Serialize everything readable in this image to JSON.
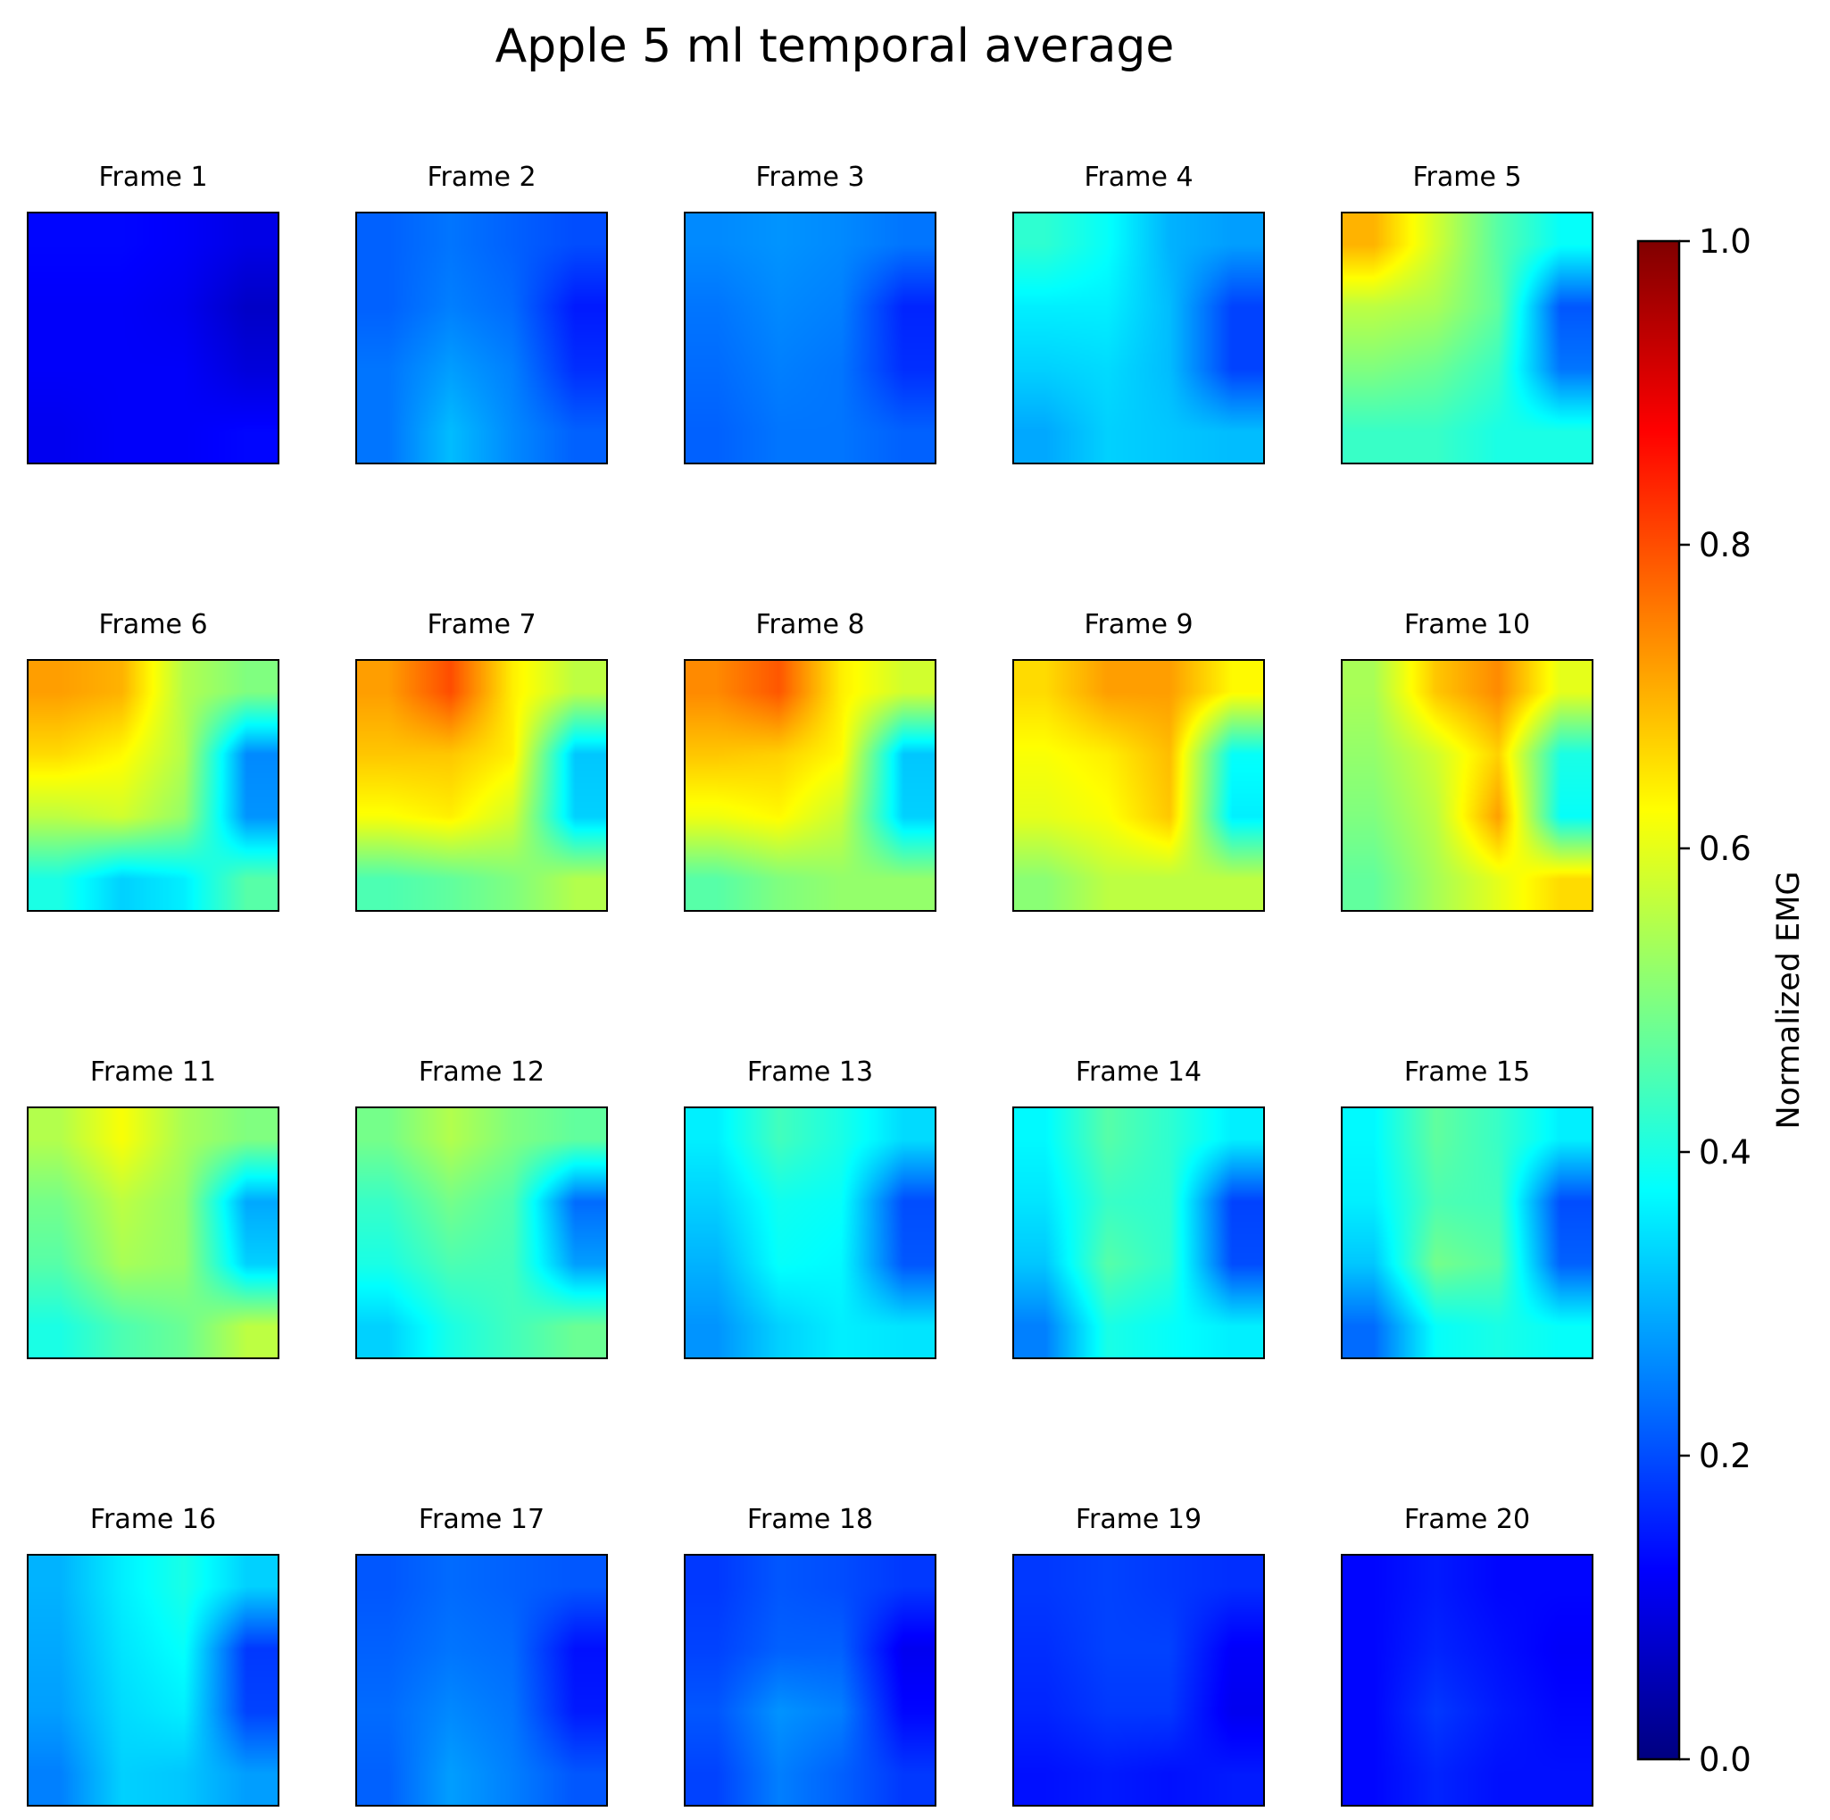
{
  "chart_data": {
    "type": "heatmap",
    "title": "Apple 5 ml temporal average",
    "colormap": "jet",
    "colorbar": {
      "label": "Normalized EMG",
      "range": [
        0,
        1
      ],
      "ticks": [
        "0.0",
        "0.2",
        "0.4",
        "0.6",
        "0.8",
        "1.0"
      ]
    },
    "frames": [
      {
        "label": "Frame 1",
        "grid": [
          [
            0.13,
            0.13,
            0.12,
            0.1
          ],
          [
            0.12,
            0.12,
            0.11,
            0.07
          ],
          [
            0.12,
            0.12,
            0.12,
            0.09
          ],
          [
            0.11,
            0.12,
            0.12,
            0.13
          ]
        ]
      },
      {
        "label": "Frame 2",
        "grid": [
          [
            0.22,
            0.24,
            0.22,
            0.2
          ],
          [
            0.22,
            0.25,
            0.23,
            0.15
          ],
          [
            0.24,
            0.28,
            0.25,
            0.17
          ],
          [
            0.24,
            0.31,
            0.26,
            0.22
          ]
        ]
      },
      {
        "label": "Frame 3",
        "grid": [
          [
            0.26,
            0.27,
            0.26,
            0.24
          ],
          [
            0.24,
            0.26,
            0.25,
            0.16
          ],
          [
            0.23,
            0.25,
            0.24,
            0.17
          ],
          [
            0.22,
            0.24,
            0.24,
            0.22
          ]
        ]
      },
      {
        "label": "Frame 4",
        "grid": [
          [
            0.42,
            0.38,
            0.3,
            0.28
          ],
          [
            0.36,
            0.36,
            0.31,
            0.19
          ],
          [
            0.33,
            0.34,
            0.31,
            0.19
          ],
          [
            0.29,
            0.33,
            0.32,
            0.31
          ]
        ]
      },
      {
        "label": "Frame 5",
        "grid": [
          [
            0.7,
            0.58,
            0.46,
            0.38
          ],
          [
            0.56,
            0.54,
            0.47,
            0.21
          ],
          [
            0.5,
            0.48,
            0.43,
            0.24
          ],
          [
            0.43,
            0.43,
            0.4,
            0.4
          ]
        ]
      },
      {
        "label": "Frame 6",
        "grid": [
          [
            0.72,
            0.7,
            0.55,
            0.5
          ],
          [
            0.66,
            0.63,
            0.55,
            0.26
          ],
          [
            0.56,
            0.58,
            0.52,
            0.27
          ],
          [
            0.4,
            0.33,
            0.36,
            0.46
          ]
        ]
      },
      {
        "label": "Frame 7",
        "grid": [
          [
            0.72,
            0.8,
            0.64,
            0.56
          ],
          [
            0.68,
            0.68,
            0.64,
            0.32
          ],
          [
            0.62,
            0.64,
            0.58,
            0.33
          ],
          [
            0.45,
            0.47,
            0.5,
            0.55
          ]
        ]
      },
      {
        "label": "Frame 8",
        "grid": [
          [
            0.74,
            0.79,
            0.64,
            0.58
          ],
          [
            0.68,
            0.67,
            0.63,
            0.32
          ],
          [
            0.61,
            0.63,
            0.57,
            0.33
          ],
          [
            0.46,
            0.5,
            0.52,
            0.52
          ]
        ]
      },
      {
        "label": "Frame 9",
        "grid": [
          [
            0.66,
            0.72,
            0.72,
            0.63
          ],
          [
            0.62,
            0.64,
            0.69,
            0.38
          ],
          [
            0.6,
            0.62,
            0.68,
            0.36
          ],
          [
            0.51,
            0.56,
            0.56,
            0.56
          ]
        ]
      },
      {
        "label": "Frame 10",
        "grid": [
          [
            0.54,
            0.68,
            0.74,
            0.6
          ],
          [
            0.52,
            0.58,
            0.67,
            0.4
          ],
          [
            0.5,
            0.56,
            0.72,
            0.38
          ],
          [
            0.47,
            0.54,
            0.6,
            0.66
          ]
        ]
      },
      {
        "label": "Frame 11",
        "grid": [
          [
            0.55,
            0.62,
            0.54,
            0.5
          ],
          [
            0.49,
            0.56,
            0.52,
            0.29
          ],
          [
            0.46,
            0.54,
            0.52,
            0.33
          ],
          [
            0.4,
            0.45,
            0.48,
            0.56
          ]
        ]
      },
      {
        "label": "Frame 12",
        "grid": [
          [
            0.49,
            0.55,
            0.5,
            0.47
          ],
          [
            0.43,
            0.49,
            0.45,
            0.23
          ],
          [
            0.4,
            0.45,
            0.44,
            0.28
          ],
          [
            0.33,
            0.4,
            0.44,
            0.48
          ]
        ]
      },
      {
        "label": "Frame 13",
        "grid": [
          [
            0.36,
            0.44,
            0.4,
            0.34
          ],
          [
            0.33,
            0.39,
            0.38,
            0.2
          ],
          [
            0.3,
            0.38,
            0.37,
            0.21
          ],
          [
            0.27,
            0.33,
            0.36,
            0.35
          ]
        ]
      },
      {
        "label": "Frame 14",
        "grid": [
          [
            0.37,
            0.46,
            0.42,
            0.36
          ],
          [
            0.35,
            0.43,
            0.42,
            0.19
          ],
          [
            0.32,
            0.46,
            0.42,
            0.2
          ],
          [
            0.25,
            0.4,
            0.38,
            0.36
          ]
        ]
      },
      {
        "label": "Frame 15",
        "grid": [
          [
            0.37,
            0.47,
            0.43,
            0.36
          ],
          [
            0.36,
            0.45,
            0.44,
            0.2
          ],
          [
            0.32,
            0.49,
            0.46,
            0.22
          ],
          [
            0.23,
            0.38,
            0.4,
            0.38
          ]
        ]
      },
      {
        "label": "Frame 16",
        "grid": [
          [
            0.3,
            0.36,
            0.4,
            0.33
          ],
          [
            0.29,
            0.35,
            0.38,
            0.18
          ],
          [
            0.28,
            0.34,
            0.36,
            0.19
          ],
          [
            0.25,
            0.33,
            0.32,
            0.28
          ]
        ]
      },
      {
        "label": "Frame 17",
        "grid": [
          [
            0.21,
            0.23,
            0.22,
            0.21
          ],
          [
            0.22,
            0.24,
            0.23,
            0.14
          ],
          [
            0.23,
            0.26,
            0.24,
            0.15
          ],
          [
            0.22,
            0.28,
            0.25,
            0.21
          ]
        ]
      },
      {
        "label": "Frame 18",
        "grid": [
          [
            0.18,
            0.21,
            0.2,
            0.18
          ],
          [
            0.19,
            0.22,
            0.22,
            0.11
          ],
          [
            0.21,
            0.27,
            0.25,
            0.13
          ],
          [
            0.19,
            0.25,
            0.22,
            0.18
          ]
        ]
      },
      {
        "label": "Frame 19",
        "grid": [
          [
            0.18,
            0.19,
            0.18,
            0.17
          ],
          [
            0.17,
            0.19,
            0.19,
            0.12
          ],
          [
            0.16,
            0.18,
            0.18,
            0.11
          ],
          [
            0.14,
            0.15,
            0.14,
            0.15
          ]
        ]
      },
      {
        "label": "Frame 20",
        "grid": [
          [
            0.13,
            0.15,
            0.13,
            0.13
          ],
          [
            0.13,
            0.16,
            0.14,
            0.12
          ],
          [
            0.13,
            0.18,
            0.15,
            0.13
          ],
          [
            0.13,
            0.16,
            0.14,
            0.14
          ]
        ]
      }
    ]
  }
}
